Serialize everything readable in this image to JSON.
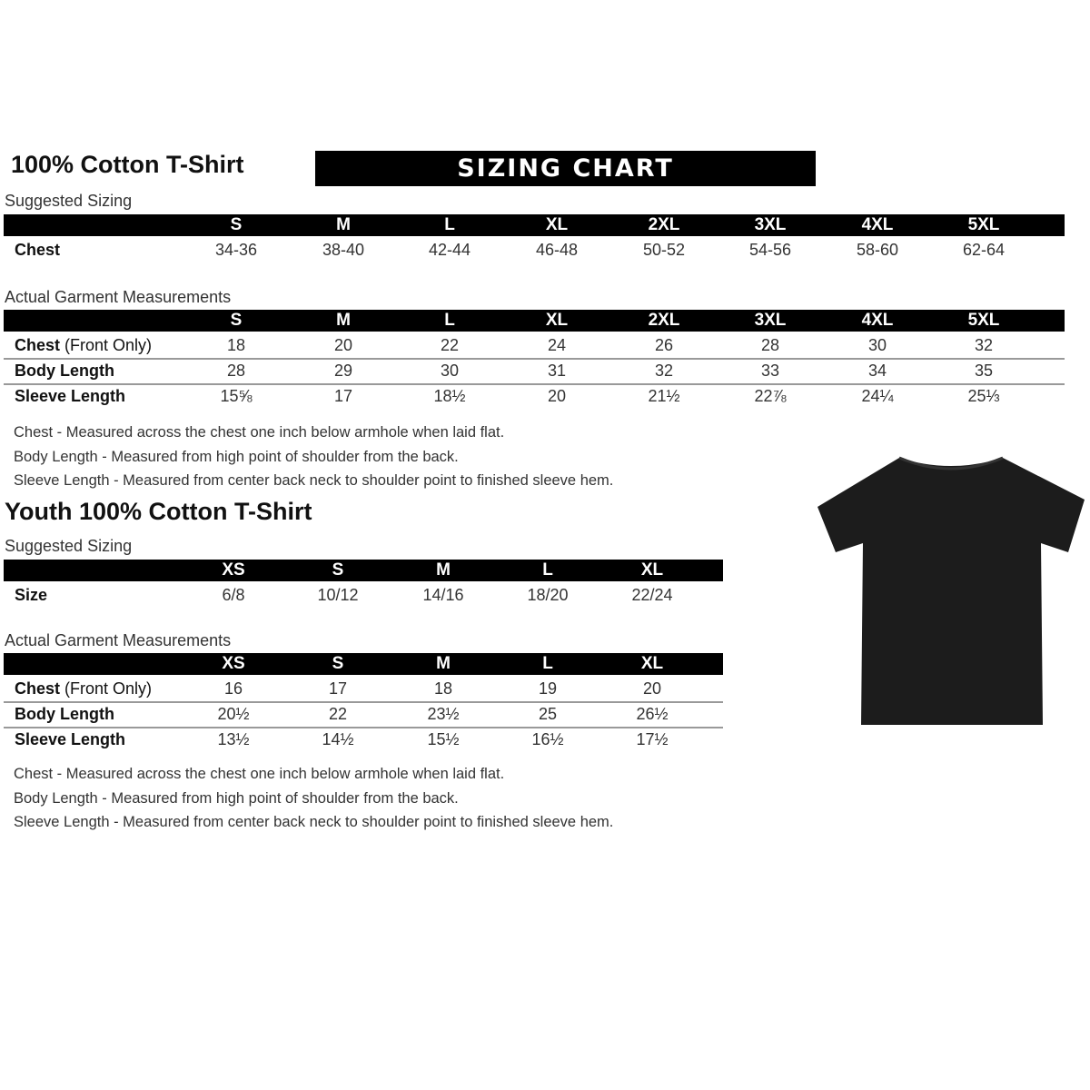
{
  "adult": {
    "title": "100% Cotton T-Shirt",
    "banner": "SIZING CHART",
    "suggested_label": "Suggested Sizing",
    "sizes": [
      "S",
      "M",
      "L",
      "XL",
      "2XL",
      "3XL",
      "4XL",
      "5XL"
    ],
    "suggested_rows": [
      {
        "label": "Chest",
        "label_light": "",
        "values": [
          "34-36",
          "38-40",
          "42-44",
          "46-48",
          "50-52",
          "54-56",
          "58-60",
          "62-64"
        ]
      }
    ],
    "actual_label": "Actual Garment Measurements",
    "actual_rows": [
      {
        "label": "Chest",
        "label_light": " (Front Only)",
        "values": [
          "18",
          "20",
          "22",
          "24",
          "26",
          "28",
          "30",
          "32"
        ]
      },
      {
        "label": "Body Length",
        "label_light": "",
        "values": [
          "28",
          "29",
          "30",
          "31",
          "32",
          "33",
          "34",
          "35"
        ]
      },
      {
        "label": "Sleeve Length",
        "label_light": "",
        "values": [
          "15⅝",
          "17",
          "18½",
          "20",
          "21½",
          "22⅞",
          "24¼",
          "25⅓"
        ]
      }
    ],
    "notes": [
      "Chest - Measured across the chest one inch below armhole when laid flat.",
      "Body Length - Measured from high point of shoulder from the back.",
      "Sleeve Length - Measured from center back neck to shoulder point to finished sleeve hem."
    ]
  },
  "youth": {
    "title": "Youth 100% Cotton T-Shirt",
    "suggested_label": "Suggested Sizing",
    "sizes": [
      "XS",
      "S",
      "M",
      "L",
      "XL"
    ],
    "suggested_rows": [
      {
        "label": "Size",
        "label_light": "",
        "values": [
          "6/8",
          "10/12",
          "14/16",
          "18/20",
          "22/24"
        ]
      }
    ],
    "actual_label": "Actual Garment Measurements",
    "actual_rows": [
      {
        "label": "Chest",
        "label_light": " (Front Only)",
        "values": [
          "16",
          "17",
          "18",
          "19",
          "20"
        ]
      },
      {
        "label": "Body Length",
        "label_light": "",
        "values": [
          "20½",
          "22",
          "23½",
          "25",
          "26½"
        ]
      },
      {
        "label": "Sleeve Length",
        "label_light": "",
        "values": [
          "13½",
          "14½",
          "15½",
          "16½",
          "17½"
        ]
      }
    ],
    "notes": [
      "Chest - Measured across the chest one inch below armhole when laid flat.",
      "Body Length - Measured from high point of shoulder from the back.",
      "Sleeve Length - Measured from center back neck to shoulder point to finished sleeve hem."
    ]
  },
  "colors": {
    "header_bar": "#000000",
    "tshirt": "#1c1c1c"
  },
  "image": {
    "icon": "tshirt-icon"
  }
}
